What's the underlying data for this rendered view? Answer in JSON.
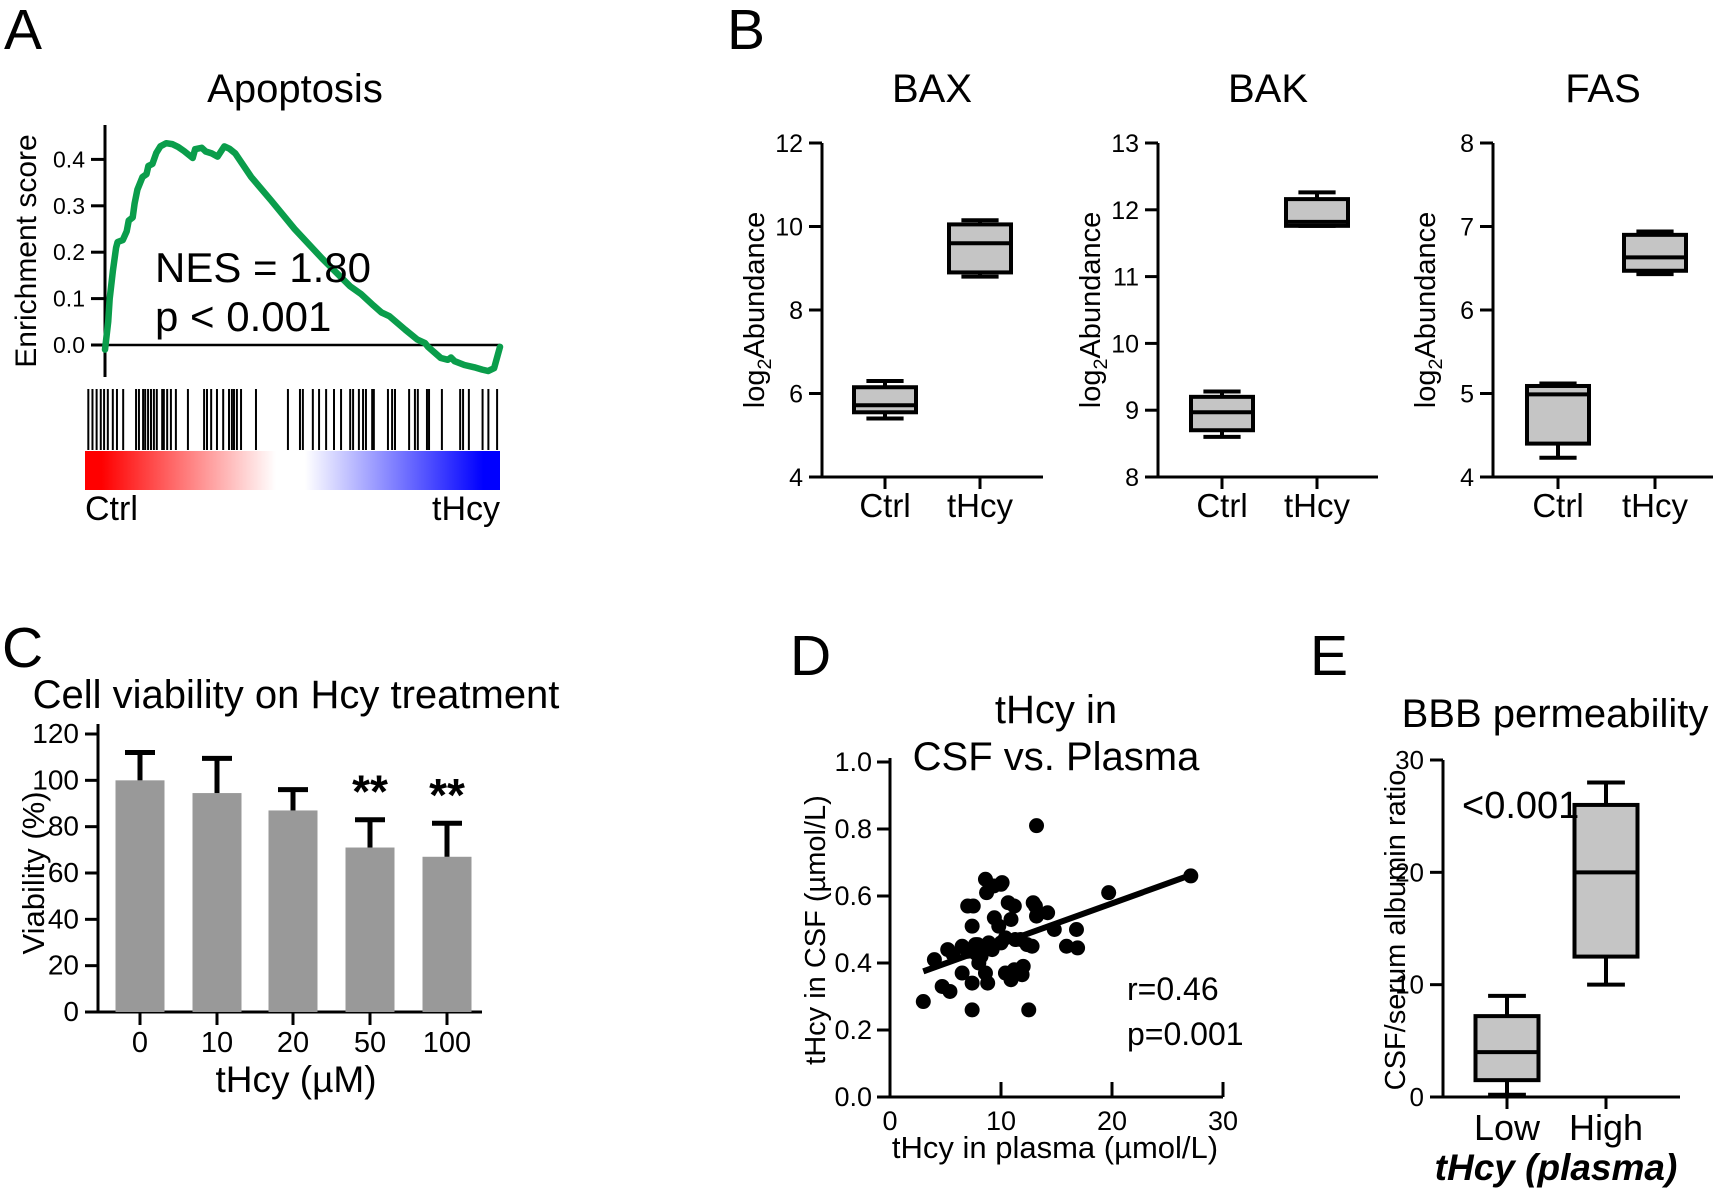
{
  "panels": {
    "A": {
      "label": "A"
    },
    "B": {
      "label": "B"
    },
    "C": {
      "label": "C"
    },
    "D": {
      "label": "D"
    },
    "E": {
      "label": "E"
    }
  },
  "chart_data": [
    {
      "type": "line",
      "subtype": "gsea-enrichment",
      "title": "Apoptosis",
      "ylabel": "Enrichment score",
      "yticks": [
        "0.0",
        "0.1",
        "0.2",
        "0.3",
        "0.4"
      ],
      "annotations": {
        "nes": "NES = 1.80",
        "p": "p < 0.001"
      },
      "categories": [
        "Ctrl",
        "tHcy"
      ],
      "curve_color": "#0a9d4b",
      "gradient_colors": [
        "#ff0000",
        "#ffffff",
        "#0000ff"
      ],
      "ylim": [
        -0.08,
        0.47
      ],
      "curve": [
        [
          0,
          -0.01
        ],
        [
          0.008,
          0.05
        ],
        [
          0.012,
          0.1
        ],
        [
          0.016,
          0.13
        ],
        [
          0.02,
          0.16
        ],
        [
          0.028,
          0.21
        ],
        [
          0.032,
          0.222
        ],
        [
          0.045,
          0.226
        ],
        [
          0.055,
          0.245
        ],
        [
          0.06,
          0.268
        ],
        [
          0.07,
          0.275
        ],
        [
          0.075,
          0.305
        ],
        [
          0.082,
          0.335
        ],
        [
          0.095,
          0.362
        ],
        [
          0.105,
          0.368
        ],
        [
          0.11,
          0.386
        ],
        [
          0.12,
          0.39
        ],
        [
          0.13,
          0.414
        ],
        [
          0.14,
          0.428
        ],
        [
          0.155,
          0.435
        ],
        [
          0.17,
          0.433
        ],
        [
          0.185,
          0.427
        ],
        [
          0.2,
          0.418
        ],
        [
          0.222,
          0.403
        ],
        [
          0.228,
          0.422
        ],
        [
          0.245,
          0.425
        ],
        [
          0.255,
          0.417
        ],
        [
          0.27,
          0.413
        ],
        [
          0.285,
          0.406
        ],
        [
          0.295,
          0.419
        ],
        [
          0.302,
          0.428
        ],
        [
          0.315,
          0.423
        ],
        [
          0.33,
          0.413
        ],
        [
          0.37,
          0.362
        ],
        [
          0.42,
          0.312
        ],
        [
          0.48,
          0.25
        ],
        [
          0.55,
          0.186
        ],
        [
          0.62,
          0.127
        ],
        [
          0.648,
          0.11
        ],
        [
          0.68,
          0.085
        ],
        [
          0.7,
          0.07
        ],
        [
          0.72,
          0.062
        ],
        [
          0.76,
          0.033
        ],
        [
          0.79,
          0.012
        ],
        [
          0.81,
          0.004
        ],
        [
          0.818,
          -0.004
        ],
        [
          0.83,
          -0.013
        ],
        [
          0.85,
          -0.028
        ],
        [
          0.868,
          -0.032
        ],
        [
          0.876,
          -0.027
        ],
        [
          0.885,
          -0.035
        ],
        [
          0.91,
          -0.043
        ],
        [
          0.935,
          -0.048
        ],
        [
          0.955,
          -0.053
        ],
        [
          0.97,
          -0.056
        ],
        [
          0.985,
          -0.05
        ],
        [
          1,
          -0.004
        ]
      ],
      "barcode_ticks": [
        0.008,
        0.018,
        0.028,
        0.038,
        0.046,
        0.055,
        0.067,
        0.077,
        0.092,
        0.123,
        0.13,
        0.14,
        0.145,
        0.152,
        0.159,
        0.166,
        0.173,
        0.186,
        0.19,
        0.198,
        0.207,
        0.219,
        0.248,
        0.287,
        0.294,
        0.304,
        0.318,
        0.333,
        0.347,
        0.354,
        0.359,
        0.366,
        0.376,
        0.412,
        0.489,
        0.518,
        0.525,
        0.549,
        0.564,
        0.581,
        0.6,
        0.617,
        0.639,
        0.646,
        0.66,
        0.67,
        0.677,
        0.692,
        0.696,
        0.73,
        0.74,
        0.747,
        0.781,
        0.795,
        0.802,
        0.824,
        0.829,
        0.86,
        0.904,
        0.911,
        0.925,
        0.958,
        0.972,
        0.993
      ]
    },
    {
      "type": "box",
      "title": "BAX",
      "ylabel_parts": [
        "log",
        "2",
        "Abundance"
      ],
      "ylim": [
        4,
        12
      ],
      "yticks": [
        4,
        6,
        8,
        10,
        12
      ],
      "categories": [
        "Ctrl",
        "tHcy"
      ],
      "box_fill": "#c5c5c5",
      "groups": [
        {
          "label": "Ctrl",
          "whislo": 5.4,
          "q1": 5.55,
          "med": 5.72,
          "q3": 6.15,
          "whishi": 6.3
        },
        {
          "label": "tHcy",
          "whislo": 8.8,
          "q1": 8.9,
          "med": 9.6,
          "q3": 10.05,
          "whishi": 10.15
        }
      ]
    },
    {
      "type": "box",
      "title": "BAK",
      "ylabel_parts": [
        "log",
        "2",
        "Abundance"
      ],
      "ylim": [
        8,
        13
      ],
      "yticks": [
        8,
        9,
        10,
        11,
        12,
        13
      ],
      "categories": [
        "Ctrl",
        "tHcy"
      ],
      "box_fill": "#c5c5c5",
      "groups": [
        {
          "label": "Ctrl",
          "whislo": 8.6,
          "q1": 8.7,
          "med": 8.97,
          "q3": 9.2,
          "whishi": 9.28
        },
        {
          "label": "tHcy",
          "whislo": 11.76,
          "q1": 11.76,
          "med": 11.82,
          "q3": 12.16,
          "whishi": 12.26
        }
      ]
    },
    {
      "type": "box",
      "title": "FAS",
      "ylabel_parts": [
        "log",
        "2",
        "Abundance"
      ],
      "ylim": [
        4,
        8
      ],
      "yticks": [
        4,
        5,
        6,
        7,
        8
      ],
      "categories": [
        "Ctrl",
        "tHcy"
      ],
      "box_fill": "#c5c5c5",
      "groups": [
        {
          "label": "Ctrl",
          "whislo": 4.23,
          "q1": 4.4,
          "med": 4.99,
          "q3": 5.09,
          "whishi": 5.12
        },
        {
          "label": "tHcy",
          "whislo": 6.43,
          "q1": 6.47,
          "med": 6.63,
          "q3": 6.9,
          "whishi": 6.94
        }
      ]
    },
    {
      "type": "bar",
      "title": "Cell viability on Hcy treatment",
      "ylabel": "Viability (%)",
      "xlabel": "tHcy (µM)",
      "categories": [
        "0",
        "10",
        "20",
        "50",
        "100"
      ],
      "values": [
        100,
        94.5,
        87,
        71,
        67
      ],
      "errors_plus": [
        12,
        15,
        9,
        12,
        14.5
      ],
      "significance": [
        "",
        "",
        "",
        "**",
        "**"
      ],
      "ylim": [
        0,
        120
      ],
      "yticks": [
        0,
        20,
        40,
        60,
        80,
        100,
        120
      ],
      "bar_fill": "#999999"
    },
    {
      "type": "scatter",
      "title_line1": "tHcy in",
      "title_line2": "CSF vs. Plasma",
      "ylabel": "tHcy in CSF (µmol/L)",
      "xlabel": "tHcy in plasma (µmol/L)",
      "xlim": [
        0,
        30
      ],
      "ylim": [
        0,
        1
      ],
      "xticks": [
        0,
        10,
        20,
        30
      ],
      "yticks": [
        "0.0",
        "0.2",
        "0.4",
        "0.6",
        "0.8",
        "1.0"
      ],
      "annotations": {
        "r": "r=0.46",
        "p": "p=0.001"
      },
      "dot_color": "#000000",
      "regression": [
        [
          3.0,
          0.375
        ],
        [
          27.3,
          0.665
        ]
      ],
      "points": [
        [
          3.0,
          0.285
        ],
        [
          4.0,
          0.41
        ],
        [
          4.7,
          0.33
        ],
        [
          5.2,
          0.44
        ],
        [
          5.4,
          0.315
        ],
        [
          5.7,
          0.425
        ],
        [
          6.5,
          0.45
        ],
        [
          6.5,
          0.37
        ],
        [
          7.0,
          0.57
        ],
        [
          7.0,
          0.435
        ],
        [
          7.4,
          0.51
        ],
        [
          7.4,
          0.34
        ],
        [
          7.4,
          0.26
        ],
        [
          7.5,
          0.57
        ],
        [
          7.7,
          0.455
        ],
        [
          7.7,
          0.43
        ],
        [
          7.9,
          0.455
        ],
        [
          8.0,
          0.4
        ],
        [
          8.2,
          0.42
        ],
        [
          8.5,
          0.44
        ],
        [
          8.6,
          0.65
        ],
        [
          8.6,
          0.37
        ],
        [
          8.7,
          0.61
        ],
        [
          8.8,
          0.34
        ],
        [
          8.9,
          0.46
        ],
        [
          9.2,
          0.44
        ],
        [
          9.35,
          0.63
        ],
        [
          9.4,
          0.535
        ],
        [
          9.8,
          0.51
        ],
        [
          10.0,
          0.635
        ],
        [
          10.0,
          0.46
        ],
        [
          10.1,
          0.64
        ],
        [
          10.4,
          0.475
        ],
        [
          10.4,
          0.37
        ],
        [
          10.65,
          0.58
        ],
        [
          10.9,
          0.53
        ],
        [
          10.9,
          0.35
        ],
        [
          11.2,
          0.57
        ],
        [
          11.2,
          0.38
        ],
        [
          11.3,
          0.47
        ],
        [
          11.75,
          0.47
        ],
        [
          11.9,
          0.365
        ],
        [
          12.0,
          0.39
        ],
        [
          12.35,
          0.455
        ],
        [
          12.5,
          0.26
        ],
        [
          12.8,
          0.45
        ],
        [
          12.9,
          0.58
        ],
        [
          13.1,
          0.57
        ],
        [
          13.2,
          0.81
        ],
        [
          13.2,
          0.54
        ],
        [
          14.2,
          0.55
        ],
        [
          14.8,
          0.5
        ],
        [
          15.9,
          0.45
        ],
        [
          16.8,
          0.5
        ],
        [
          16.9,
          0.445
        ],
        [
          19.7,
          0.61
        ],
        [
          27.1,
          0.66
        ]
      ]
    },
    {
      "type": "box",
      "title": "BBB permeability",
      "ylabel": "CSF/serum albumin ratio",
      "xlabel": "tHcy (plasma)",
      "annotation": "<0.001",
      "ylim": [
        0,
        30
      ],
      "yticks": [
        0,
        10,
        20,
        30
      ],
      "categories": [
        "Low",
        "High"
      ],
      "box_fill": "#c5c5c5",
      "groups": [
        {
          "label": "Low",
          "whislo": 0.2,
          "q1": 1.5,
          "med": 4.0,
          "q3": 7.2,
          "whishi": 9.0
        },
        {
          "label": "High",
          "whislo": 10.0,
          "q1": 12.5,
          "med": 20.0,
          "q3": 26.0,
          "whishi": 28.0
        }
      ]
    }
  ]
}
